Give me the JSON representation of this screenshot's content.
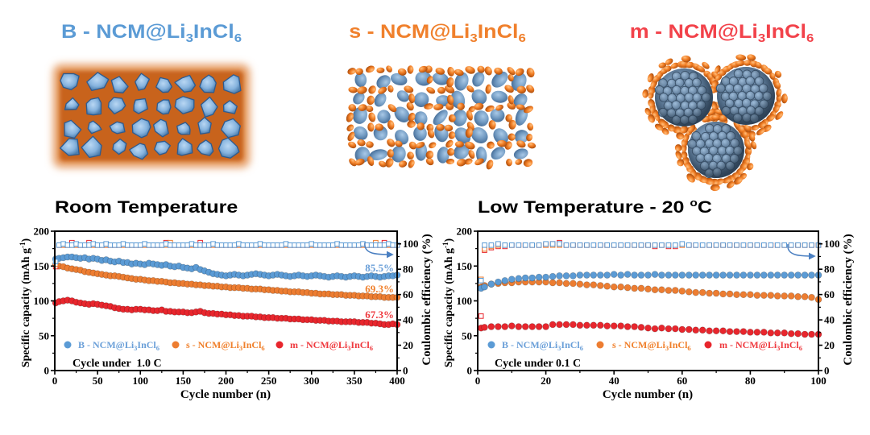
{
  "materials": [
    {
      "key": "B",
      "label": {
        "prefix": "B - NCM@Li",
        "sub1": "3",
        "mid": "InCl",
        "sub2": "6"
      },
      "color": "#5b9bd5",
      "illustration_icon": "embedded-particles-icon"
    },
    {
      "key": "s",
      "label": {
        "prefix": "s - NCM@Li",
        "sub1": "3",
        "mid": "InCl",
        "sub2": "6"
      },
      "color": "#f0802c",
      "illustration_icon": "mixed-ellipsoid-particles-icon"
    },
    {
      "key": "m",
      "label": {
        "prefix": "m - NCM@Li",
        "sub1": "3",
        "mid": "InCl",
        "sub2": "6"
      },
      "color": "#f2424a",
      "illustration_icon": "coated-spheres-icon"
    }
  ],
  "chart_data": [
    {
      "type": "scatter",
      "title": {
        "main": "Room Temperature",
        "sup": "",
        "end": ""
      },
      "xlabel": "Cycle number (n)",
      "ylabel": {
        "main": "Specific capacity (mAh g",
        "sup": "-1",
        "end": ")"
      },
      "y2label": "Coulombic efficiency (%)",
      "xlim": [
        0,
        400
      ],
      "ylim": [
        0,
        200
      ],
      "y2lim": [
        0,
        110
      ],
      "x_ticks": [
        0,
        50,
        100,
        150,
        200,
        250,
        300,
        350,
        400
      ],
      "y_ticks": [
        0,
        50,
        100,
        150,
        200
      ],
      "y2_ticks": [
        0,
        20,
        40,
        60,
        80,
        100
      ],
      "grid": false,
      "legend_position": "bottom-left",
      "condition": "Cycle under  1.0 C",
      "annotation_arrow": "right-axis-pointer-icon",
      "x": [
        1,
        5,
        10,
        15,
        20,
        25,
        30,
        35,
        40,
        45,
        50,
        55,
        60,
        65,
        70,
        75,
        80,
        85,
        90,
        95,
        100,
        105,
        110,
        115,
        120,
        125,
        130,
        135,
        140,
        145,
        150,
        155,
        160,
        165,
        170,
        175,
        180,
        185,
        190,
        195,
        200,
        205,
        210,
        215,
        220,
        225,
        230,
        235,
        240,
        245,
        250,
        255,
        260,
        265,
        270,
        275,
        280,
        285,
        290,
        295,
        300,
        305,
        310,
        315,
        320,
        325,
        330,
        335,
        340,
        345,
        350,
        355,
        360,
        365,
        370,
        375,
        380,
        385,
        390,
        395,
        400
      ],
      "series": [
        {
          "name": "B - NCM@Li3InCl6",
          "label": {
            "prefix": "B - NCM@Li",
            "sub1": "3",
            "mid": "InCl",
            "sub2": "6"
          },
          "color": "#5b9bd5",
          "text_color": "#6a9fd8",
          "retention_label": "85.5%",
          "capacity": [
            160,
            161,
            162,
            163,
            163,
            162,
            161,
            162,
            160,
            161,
            160,
            158,
            159,
            157,
            156,
            157,
            155,
            155,
            153,
            154,
            153,
            152,
            154,
            153,
            152,
            151,
            152,
            150,
            149,
            150,
            148,
            147,
            146,
            148,
            145,
            143,
            141,
            139,
            138,
            137,
            136,
            137,
            138,
            137,
            136,
            137,
            138,
            139,
            138,
            137,
            136,
            137,
            138,
            137,
            136,
            135,
            136,
            137,
            136,
            135,
            136,
            137,
            136,
            135,
            134,
            135,
            136,
            135,
            134,
            135,
            136,
            135,
            134,
            135,
            136,
            135,
            134,
            135,
            136,
            136,
            137
          ],
          "coulombic_efficiency": [
            86,
            99,
            100,
            99,
            99,
            100,
            99,
            99,
            99,
            100,
            99,
            99,
            100,
            99,
            99,
            99,
            100,
            99,
            99,
            99,
            99,
            100,
            99,
            99,
            99,
            99,
            100,
            99,
            99,
            99,
            99,
            99,
            100,
            99,
            99,
            99,
            99,
            100,
            99,
            99,
            99,
            99,
            99,
            100,
            99,
            99,
            99,
            99,
            100,
            99,
            99,
            99,
            99,
            99,
            100,
            99,
            99,
            99,
            99,
            99,
            100,
            99,
            99,
            99,
            99,
            99,
            100,
            99,
            99,
            99,
            99,
            99,
            100,
            99,
            99,
            99,
            99,
            99,
            100,
            99,
            99
          ]
        },
        {
          "name": "s - NCM@Li3InCl6",
          "label": {
            "prefix": "s - NCM@Li",
            "sub1": "3",
            "mid": "InCl",
            "sub2": "6"
          },
          "color": "#ed7d31",
          "text_color": "#f0802c",
          "retention_label": "69.3%",
          "capacity": [
            152,
            150,
            149,
            147,
            146,
            145,
            144,
            142,
            141,
            140,
            139,
            138,
            137,
            136,
            136,
            135,
            134,
            133,
            132,
            131,
            131,
            130,
            129,
            129,
            128,
            128,
            127,
            126,
            126,
            125,
            125,
            124,
            124,
            123,
            123,
            122,
            122,
            121,
            121,
            120,
            120,
            119,
            119,
            119,
            118,
            118,
            117,
            117,
            117,
            116,
            116,
            115,
            115,
            114,
            114,
            113,
            113,
            113,
            112,
            112,
            111,
            111,
            110,
            110,
            110,
            109,
            109,
            109,
            108,
            108,
            108,
            107,
            107,
            107,
            106,
            106,
            106,
            105,
            105,
            105,
            105
          ],
          "coulombic_efficiency": [
            84,
            99,
            99,
            99,
            99,
            99,
            99,
            99,
            99,
            99,
            99,
            99,
            99,
            99,
            99,
            99,
            99,
            99,
            99,
            99,
            99,
            99,
            99,
            99,
            99,
            99,
            99,
            101,
            99,
            99,
            99,
            99,
            99,
            99,
            99,
            99,
            99,
            99,
            99,
            99,
            99,
            99,
            99,
            99,
            99,
            99,
            99,
            99,
            99,
            99,
            99,
            99,
            99,
            99,
            99,
            99,
            99,
            99,
            99,
            99,
            99,
            99,
            99,
            99,
            99,
            99,
            99,
            99,
            99,
            99,
            99,
            99,
            99,
            99,
            99,
            101,
            99,
            99,
            99,
            99,
            99
          ]
        },
        {
          "name": "m - NCM@Li3InCl6",
          "label": {
            "prefix": "m - NCM@Li",
            "sub1": "3",
            "mid": "InCl",
            "sub2": "6"
          },
          "color": "#e8262d",
          "text_color": "#ef3a3f",
          "retention_label": "67.3%",
          "capacity": [
            97,
            99,
            100,
            101,
            100,
            98,
            97,
            96,
            95,
            96,
            95,
            94,
            93,
            92,
            90,
            89,
            88,
            88,
            87,
            88,
            88,
            87,
            87,
            86,
            86,
            87,
            85,
            85,
            84,
            84,
            84,
            83,
            83,
            84,
            85,
            83,
            82,
            82,
            81,
            81,
            80,
            80,
            79,
            79,
            78,
            78,
            78,
            77,
            77,
            76,
            76,
            76,
            75,
            75,
            75,
            74,
            74,
            74,
            73,
            73,
            73,
            72,
            72,
            72,
            71,
            71,
            71,
            70,
            70,
            70,
            70,
            69,
            69,
            69,
            68,
            68,
            67,
            66,
            66,
            67,
            66
          ],
          "coulombic_efficiency": [
            82,
            99,
            99,
            99,
            101,
            99,
            99,
            99,
            101,
            99,
            99,
            99,
            99,
            99,
            99,
            99,
            99,
            99,
            99,
            99,
            99,
            99,
            99,
            99,
            99,
            99,
            101,
            99,
            99,
            99,
            99,
            99,
            99,
            99,
            101,
            99,
            99,
            99,
            99,
            99,
            99,
            99,
            99,
            99,
            99,
            99,
            99,
            99,
            99,
            99,
            99,
            99,
            99,
            99,
            99,
            99,
            99,
            99,
            99,
            99,
            99,
            99,
            99,
            99,
            99,
            99,
            99,
            99,
            99,
            99,
            99,
            99,
            99,
            99,
            99,
            99,
            99,
            101,
            99,
            99,
            99
          ]
        }
      ]
    },
    {
      "type": "scatter",
      "title": {
        "main": "Low Temperature - 20 ",
        "sup": "o",
        "end": "C"
      },
      "xlabel": "Cycle number (n)",
      "ylabel": {
        "main": "Specific capacity (mAh g",
        "sup": "-1",
        "end": ")"
      },
      "y2label": "Coulombic efficiency (%)",
      "xlim": [
        0,
        100
      ],
      "ylim": [
        0,
        200
      ],
      "y2lim": [
        0,
        110
      ],
      "x_ticks": [
        0,
        20,
        40,
        60,
        80,
        100
      ],
      "y_ticks": [
        0,
        50,
        100,
        150,
        200
      ],
      "y2_ticks": [
        0,
        20,
        40,
        60,
        80,
        100
      ],
      "grid": false,
      "legend_position": "bottom-left",
      "condition": "Cycle under 0.1 C",
      "annotation_arrow": "right-axis-pointer-icon",
      "x": [
        1,
        2,
        4,
        6,
        8,
        10,
        12,
        14,
        16,
        18,
        20,
        22,
        24,
        26,
        28,
        30,
        32,
        34,
        36,
        38,
        40,
        42,
        44,
        46,
        48,
        50,
        52,
        54,
        56,
        58,
        60,
        62,
        64,
        66,
        68,
        70,
        72,
        74,
        76,
        78,
        80,
        82,
        84,
        86,
        88,
        90,
        92,
        94,
        96,
        98,
        100
      ],
      "series": [
        {
          "name": "B - NCM@Li3InCl6",
          "label": {
            "prefix": "B - NCM@Li",
            "sub1": "3",
            "mid": "InCl",
            "sub2": "6"
          },
          "color": "#5b9bd5",
          "text_color": "#6a9fd8",
          "capacity": [
            118,
            120,
            124,
            127,
            129,
            131,
            132,
            133,
            133,
            134,
            134,
            135,
            136,
            136,
            136,
            137,
            137,
            137,
            137,
            137,
            138,
            137,
            138,
            137,
            137,
            137,
            138,
            137,
            137,
            137,
            137,
            137,
            137,
            137,
            137,
            137,
            137,
            137,
            137,
            137,
            137,
            137,
            137,
            137,
            137,
            137,
            137,
            137,
            137,
            137,
            137
          ],
          "coulombic_efficiency": [
            71,
            99,
            99,
            100,
            99,
            99,
            99,
            99,
            99,
            99,
            100,
            100,
            100,
            99,
            99,
            99,
            99,
            99,
            99,
            99,
            99,
            99,
            99,
            99,
            99,
            99,
            99,
            99,
            99,
            99,
            100,
            99,
            99,
            99,
            99,
            99,
            99,
            99,
            99,
            99,
            99,
            99,
            99,
            99,
            99,
            99,
            99,
            99,
            99,
            99,
            99
          ]
        },
        {
          "name": "s - NCM@Li3InCl6",
          "label": {
            "prefix": "s - NCM@Li",
            "sub1": "3",
            "mid": "InCl",
            "sub2": "6"
          },
          "color": "#ed7d31",
          "text_color": "#f0802c",
          "capacity": [
            120,
            122,
            124,
            125,
            126,
            126,
            127,
            127,
            127,
            127,
            127,
            126,
            126,
            125,
            125,
            124,
            123,
            123,
            122,
            121,
            120,
            120,
            119,
            118,
            118,
            117,
            116,
            116,
            115,
            115,
            114,
            113,
            112,
            112,
            111,
            111,
            110,
            110,
            109,
            109,
            109,
            108,
            108,
            108,
            107,
            107,
            107,
            106,
            106,
            105,
            102
          ],
          "coulombic_efficiency": [
            72,
            96,
            98,
            99,
            99,
            99,
            99,
            99,
            99,
            99,
            99,
            99,
            99,
            99,
            99,
            99,
            99,
            99,
            99,
            99,
            99,
            99,
            99,
            99,
            99,
            99,
            99,
            99,
            99,
            99,
            99,
            99,
            99,
            99,
            99,
            99,
            99,
            99,
            99,
            99,
            99,
            99,
            99,
            99,
            99,
            99,
            99,
            99,
            99,
            99,
            99
          ]
        },
        {
          "name": "m - NCM@Li3InCl6",
          "label": {
            "prefix": "m - NCM@Li",
            "sub1": "3",
            "mid": "InCl",
            "sub2": "6"
          },
          "color": "#e8262d",
          "text_color": "#ef3a3f",
          "capacity": [
            61,
            62,
            63,
            63,
            63,
            64,
            63,
            63,
            63,
            63,
            63,
            66,
            66,
            66,
            66,
            65,
            65,
            65,
            65,
            64,
            64,
            64,
            63,
            63,
            62,
            61,
            60,
            61,
            60,
            60,
            59,
            59,
            58,
            58,
            57,
            57,
            57,
            56,
            56,
            56,
            55,
            55,
            55,
            54,
            54,
            54,
            53,
            53,
            52,
            52,
            52
          ],
          "coulombic_efficiency": [
            43,
            95,
            97,
            98,
            98,
            99,
            99,
            99,
            99,
            99,
            99,
            100,
            101,
            99,
            99,
            99,
            99,
            99,
            99,
            99,
            99,
            99,
            99,
            99,
            99,
            99,
            98,
            99,
            98,
            98,
            99,
            99,
            99,
            99,
            99,
            99,
            99,
            99,
            99,
            99,
            99,
            99,
            99,
            99,
            99,
            99,
            99,
            99,
            99,
            99,
            99
          ]
        }
      ]
    }
  ]
}
